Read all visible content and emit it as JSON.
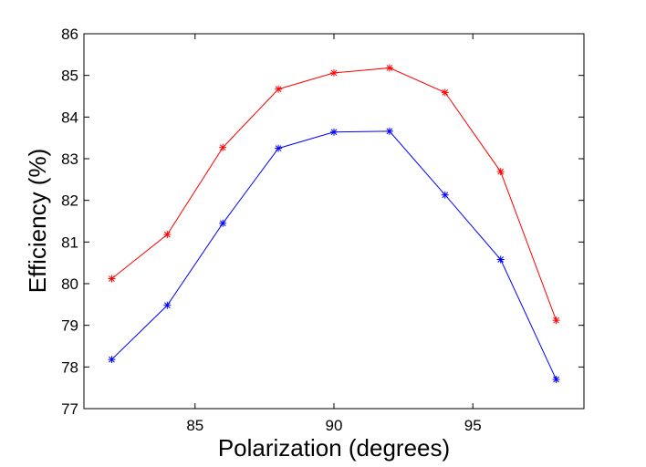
{
  "chart_data": {
    "type": "line",
    "title": "",
    "xlabel": "Polarization (degrees)",
    "ylabel": "Efficiency (%)",
    "xlim": [
      81,
      99
    ],
    "ylim": [
      77,
      86
    ],
    "x_ticks": [
      85,
      90,
      95
    ],
    "y_ticks": [
      77,
      78,
      79,
      80,
      81,
      82,
      83,
      84,
      85,
      86
    ],
    "x_tick_labels": [
      "85",
      "90",
      "95"
    ],
    "y_tick_labels": [
      "77",
      "78",
      "79",
      "80",
      "81",
      "82",
      "83",
      "84",
      "85",
      "86"
    ],
    "grid": false,
    "legend": null,
    "x": [
      82,
      84,
      86,
      88,
      90,
      92,
      94,
      96,
      98
    ],
    "series": [
      {
        "name": "red series",
        "color": "#ff0000",
        "marker": "asterisk",
        "values": [
          80.12,
          81.18,
          83.27,
          84.67,
          85.06,
          85.18,
          84.59,
          82.69,
          79.12
        ]
      },
      {
        "name": "blue series",
        "color": "#0000ff",
        "marker": "asterisk",
        "values": [
          78.18,
          79.48,
          81.45,
          83.25,
          83.64,
          83.66,
          82.13,
          80.58,
          77.7
        ]
      }
    ]
  }
}
